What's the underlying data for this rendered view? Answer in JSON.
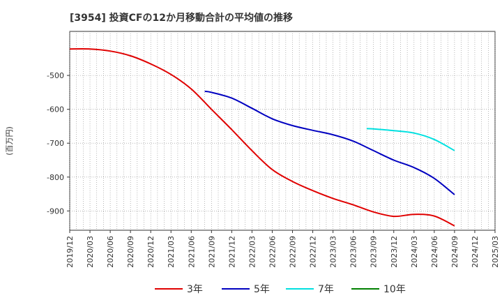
{
  "chart_data": {
    "type": "line",
    "title": "[3954]  投資CFの12か月移動合計の平均値の推移",
    "xlabel": "",
    "ylabel": "(百万円)",
    "x_ticks": [
      "2019/12",
      "2020/03",
      "2020/06",
      "2020/09",
      "2020/12",
      "2021/03",
      "2021/06",
      "2021/09",
      "2021/12",
      "2022/03",
      "2022/06",
      "2022/09",
      "2022/12",
      "2023/03",
      "2023/06",
      "2023/09",
      "2023/12",
      "2024/03",
      "2024/06",
      "2024/09",
      "2024/12",
      "2025/03"
    ],
    "y_ticks": [
      -500,
      -600,
      -700,
      -800,
      -900
    ],
    "ylim": [
      -957,
      -370
    ],
    "grid": true,
    "legend_position": "bottom",
    "series": [
      {
        "name": "3年",
        "color": "#e00000",
        "points": [
          [
            "2019/12",
            -422
          ],
          [
            "2020/03",
            -422
          ],
          [
            "2020/06",
            -428
          ],
          [
            "2020/09",
            -442
          ],
          [
            "2020/12",
            -466
          ],
          [
            "2021/03",
            -497
          ],
          [
            "2021/06",
            -540
          ],
          [
            "2021/09",
            -600
          ],
          [
            "2021/12",
            -660
          ],
          [
            "2022/03",
            -722
          ],
          [
            "2022/06",
            -778
          ],
          [
            "2022/09",
            -813
          ],
          [
            "2022/12",
            -840
          ],
          [
            "2023/03",
            -863
          ],
          [
            "2023/06",
            -882
          ],
          [
            "2023/09",
            -903
          ],
          [
            "2023/12",
            -916
          ],
          [
            "2024/03",
            -910
          ],
          [
            "2024/06",
            -915
          ],
          [
            "2024/09",
            -944
          ]
        ]
      },
      {
        "name": "5年",
        "color": "#0000c0",
        "points": [
          [
            "2021/08",
            -547
          ],
          [
            "2021/09",
            -550
          ],
          [
            "2021/12",
            -567
          ],
          [
            "2022/03",
            -597
          ],
          [
            "2022/06",
            -628
          ],
          [
            "2022/09",
            -648
          ],
          [
            "2022/12",
            -662
          ],
          [
            "2023/03",
            -675
          ],
          [
            "2023/06",
            -694
          ],
          [
            "2023/09",
            -722
          ],
          [
            "2023/12",
            -750
          ],
          [
            "2024/03",
            -772
          ],
          [
            "2024/06",
            -804
          ],
          [
            "2024/09",
            -852
          ]
        ]
      },
      {
        "name": "7年",
        "color": "#00e0e0",
        "points": [
          [
            "2023/08",
            -657
          ],
          [
            "2023/09",
            -658
          ],
          [
            "2023/12",
            -663
          ],
          [
            "2024/03",
            -670
          ],
          [
            "2024/06",
            -689
          ],
          [
            "2024/09",
            -722
          ]
        ]
      },
      {
        "name": "10年",
        "color": "#008000",
        "points": []
      }
    ]
  }
}
